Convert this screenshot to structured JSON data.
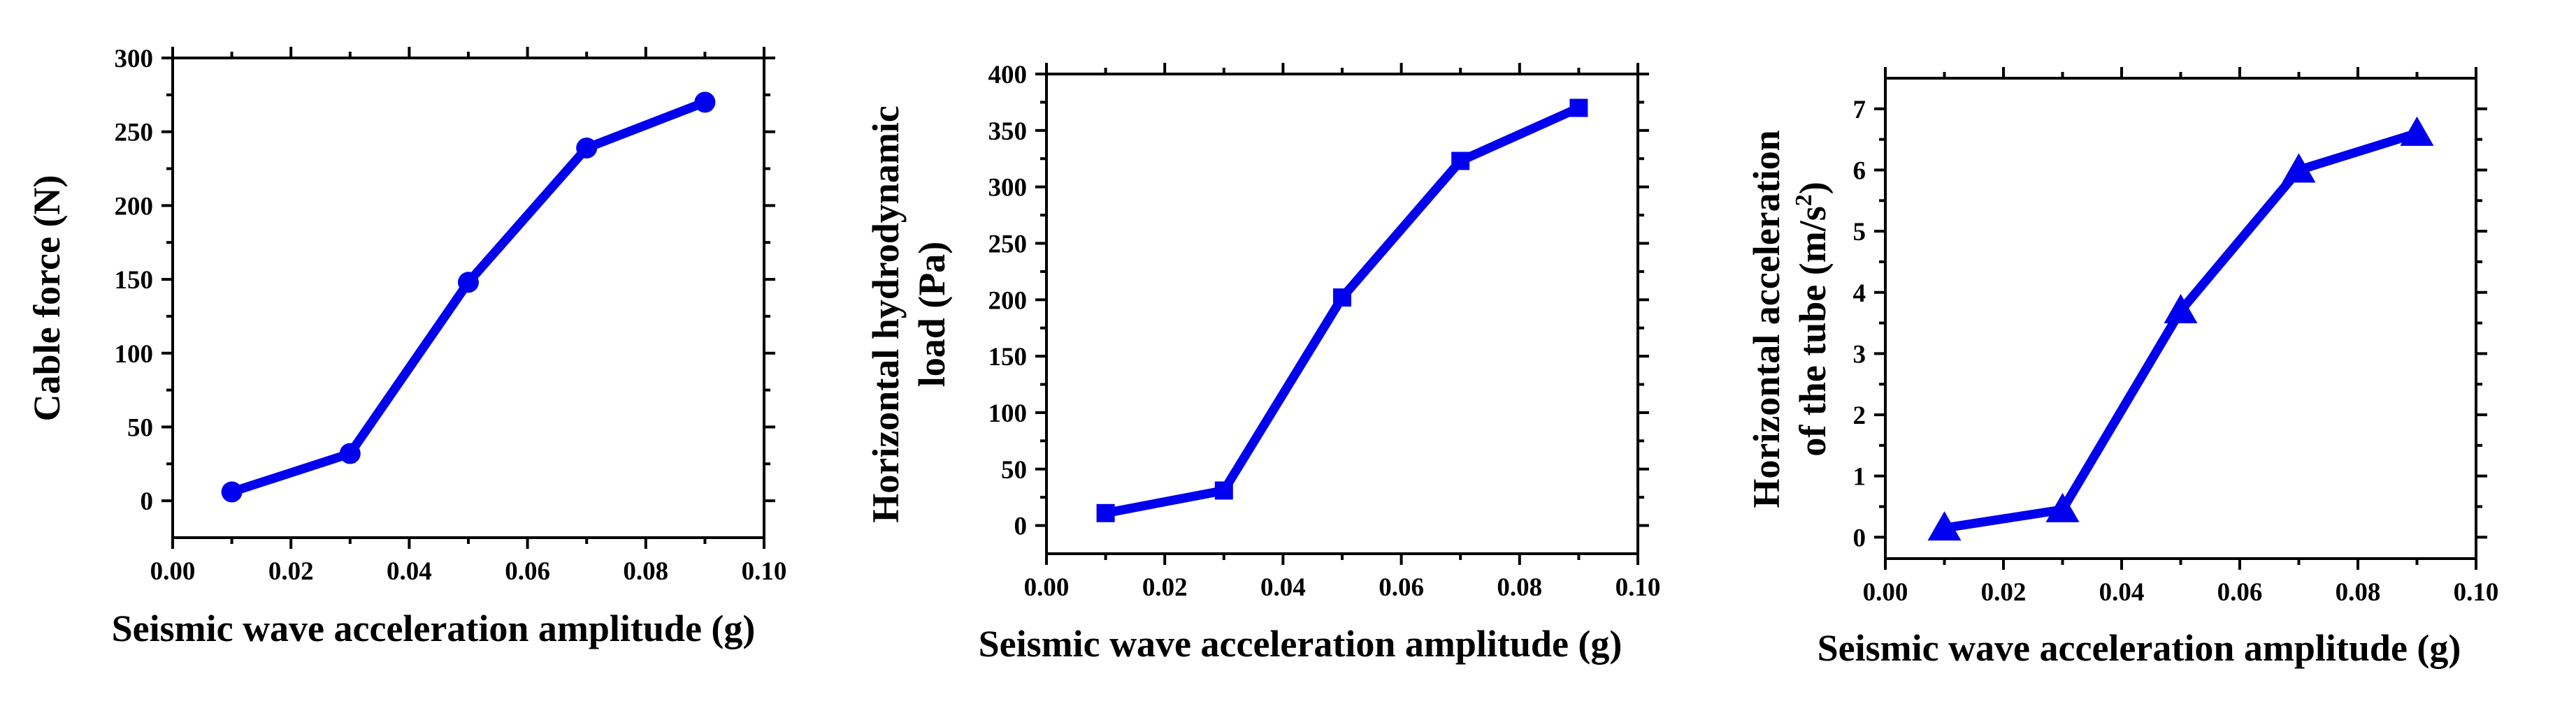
{
  "colors": {
    "series": "#0000ee",
    "axes": "#000000",
    "background": "#ffffff"
  },
  "chart_data": [
    {
      "type": "line",
      "marker": "circle",
      "x": [
        0.01,
        0.03,
        0.05,
        0.07,
        0.09
      ],
      "y": [
        6,
        32,
        148,
        239,
        270
      ],
      "xlim": [
        0.0,
        0.1
      ],
      "ylim": [
        -25,
        300
      ],
      "xticks": [
        "0.00",
        "0.02",
        "0.04",
        "0.06",
        "0.08",
        "0.10"
      ],
      "yticks": [
        "0",
        "50",
        "100",
        "150",
        "200",
        "250",
        "300"
      ],
      "xlabel": "Seismic wave acceleration amplitude (g)",
      "ylabel": [
        "Cable force (N)"
      ],
      "grid": false
    },
    {
      "type": "line",
      "marker": "square",
      "x": [
        0.01,
        0.03,
        0.05,
        0.07,
        0.09
      ],
      "y": [
        11,
        31,
        202,
        323,
        370
      ],
      "xlim": [
        0.0,
        0.1
      ],
      "ylim": [
        -25,
        400
      ],
      "xticks": [
        "0.00",
        "0.02",
        "0.04",
        "0.06",
        "0.08",
        "0.10"
      ],
      "yticks": [
        "0",
        "50",
        "100",
        "150",
        "200",
        "250",
        "300",
        "350",
        "400"
      ],
      "xlabel": "Seismic wave acceleration amplitude (g)",
      "ylabel": [
        "Horizontal hydrodynamic",
        "load (Pa)"
      ],
      "grid": false
    },
    {
      "type": "line",
      "marker": "triangle",
      "x": [
        0.01,
        0.03,
        0.05,
        0.07,
        0.09
      ],
      "y": [
        0.15,
        0.45,
        3.7,
        6.0,
        6.6
      ],
      "xlim": [
        0.0,
        0.1
      ],
      "ylim": [
        -0.35,
        7.5
      ],
      "xticks": [
        "0.00",
        "0.02",
        "0.04",
        "0.06",
        "0.08",
        "0.10"
      ],
      "yticks": [
        "0",
        "1",
        "2",
        "3",
        "4",
        "5",
        "6",
        "7"
      ],
      "xlabel": "Seismic wave acceleration amplitude (g)",
      "ylabel": [
        "Horizontal acceleration",
        "of the tube (m/s",
        "2",
        ")"
      ],
      "grid": false
    }
  ]
}
